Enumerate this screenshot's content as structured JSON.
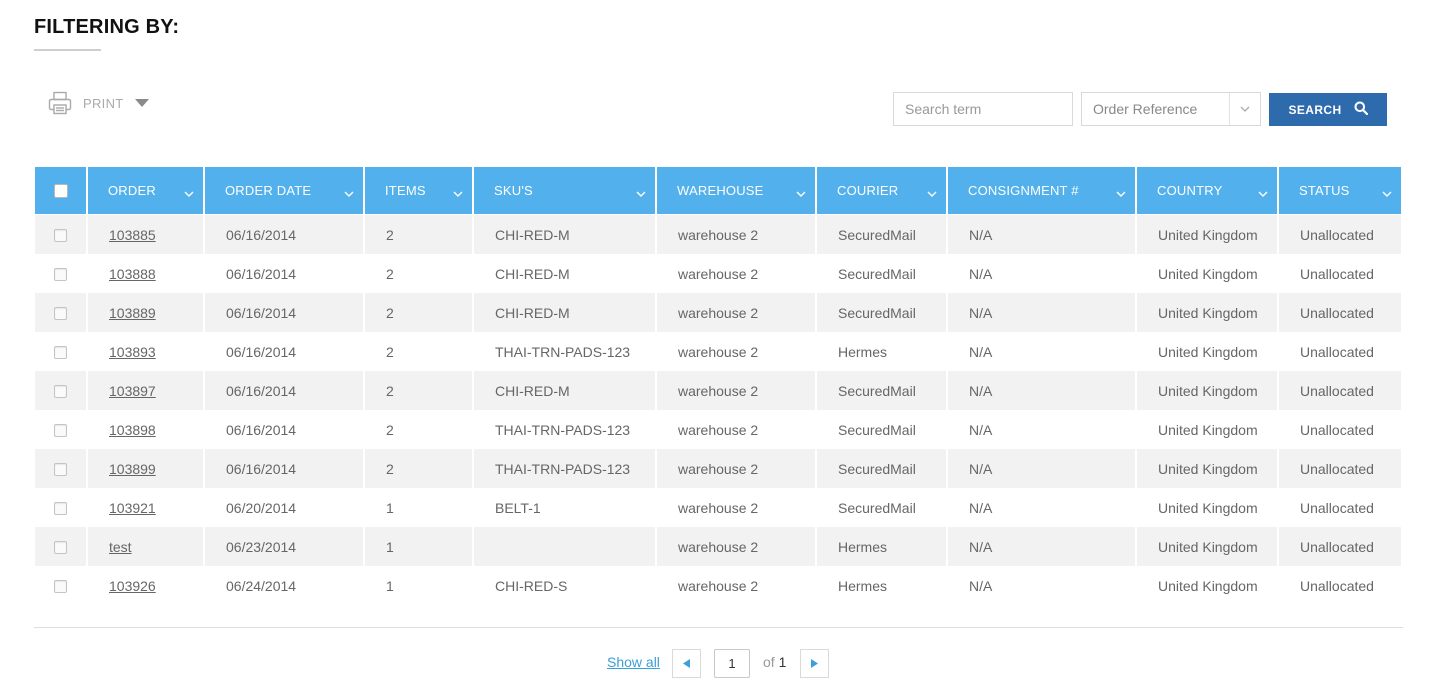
{
  "filter": {
    "title": "FILTERING BY:"
  },
  "toolbar": {
    "print_label": "PRINT"
  },
  "search": {
    "placeholder": "Search term",
    "field_value": "Order Reference",
    "button_label": "SEARCH"
  },
  "colors": {
    "header_bg": "#52b1ec",
    "button_bg": "#2e6bad",
    "link": "#3c9fd9",
    "row_alt": "#f2f2f2"
  },
  "table": {
    "columns": [
      "ORDER",
      "ORDER DATE",
      "ITEMS",
      "SKU'S",
      "WAREHOUSE",
      "COURIER",
      "CONSIGNMENT #",
      "COUNTRY",
      "STATUS"
    ],
    "rows": [
      {
        "order": "103885",
        "date": "06/16/2014",
        "items": "2",
        "sku": "CHI-RED-M",
        "warehouse": "warehouse 2",
        "courier": "SecuredMail",
        "consignment": "N/A",
        "country": "United Kingdom",
        "status": "Unallocated"
      },
      {
        "order": "103888",
        "date": "06/16/2014",
        "items": "2",
        "sku": "CHI-RED-M",
        "warehouse": "warehouse 2",
        "courier": "SecuredMail",
        "consignment": "N/A",
        "country": "United Kingdom",
        "status": "Unallocated"
      },
      {
        "order": "103889",
        "date": "06/16/2014",
        "items": "2",
        "sku": "CHI-RED-M",
        "warehouse": "warehouse 2",
        "courier": "SecuredMail",
        "consignment": "N/A",
        "country": "United Kingdom",
        "status": "Unallocated"
      },
      {
        "order": "103893",
        "date": "06/16/2014",
        "items": "2",
        "sku": "THAI-TRN-PADS-123",
        "warehouse": "warehouse 2",
        "courier": "Hermes",
        "consignment": "N/A",
        "country": "United Kingdom",
        "status": "Unallocated"
      },
      {
        "order": "103897",
        "date": "06/16/2014",
        "items": "2",
        "sku": "CHI-RED-M",
        "warehouse": "warehouse 2",
        "courier": "SecuredMail",
        "consignment": "N/A",
        "country": "United Kingdom",
        "status": "Unallocated"
      },
      {
        "order": "103898",
        "date": "06/16/2014",
        "items": "2",
        "sku": "THAI-TRN-PADS-123",
        "warehouse": "warehouse 2",
        "courier": "SecuredMail",
        "consignment": "N/A",
        "country": "United Kingdom",
        "status": "Unallocated"
      },
      {
        "order": "103899",
        "date": "06/16/2014",
        "items": "2",
        "sku": "THAI-TRN-PADS-123",
        "warehouse": "warehouse 2",
        "courier": "SecuredMail",
        "consignment": "N/A",
        "country": "United Kingdom",
        "status": "Unallocated"
      },
      {
        "order": "103921",
        "date": "06/20/2014",
        "items": "1",
        "sku": "BELT-1",
        "warehouse": "warehouse 2",
        "courier": "SecuredMail",
        "consignment": "N/A",
        "country": "United Kingdom",
        "status": "Unallocated"
      },
      {
        "order": "test",
        "date": "06/23/2014",
        "items": "1",
        "sku": "",
        "warehouse": "warehouse 2",
        "courier": "Hermes",
        "consignment": "N/A",
        "country": "United Kingdom",
        "status": "Unallocated"
      },
      {
        "order": "103926",
        "date": "06/24/2014",
        "items": "1",
        "sku": "CHI-RED-S",
        "warehouse": "warehouse 2",
        "courier": "Hermes",
        "consignment": "N/A",
        "country": "United Kingdom",
        "status": "Unallocated"
      }
    ]
  },
  "pagination": {
    "show_all_label": "Show all",
    "current_page": "1",
    "of_label": "of",
    "total_pages": "1"
  }
}
